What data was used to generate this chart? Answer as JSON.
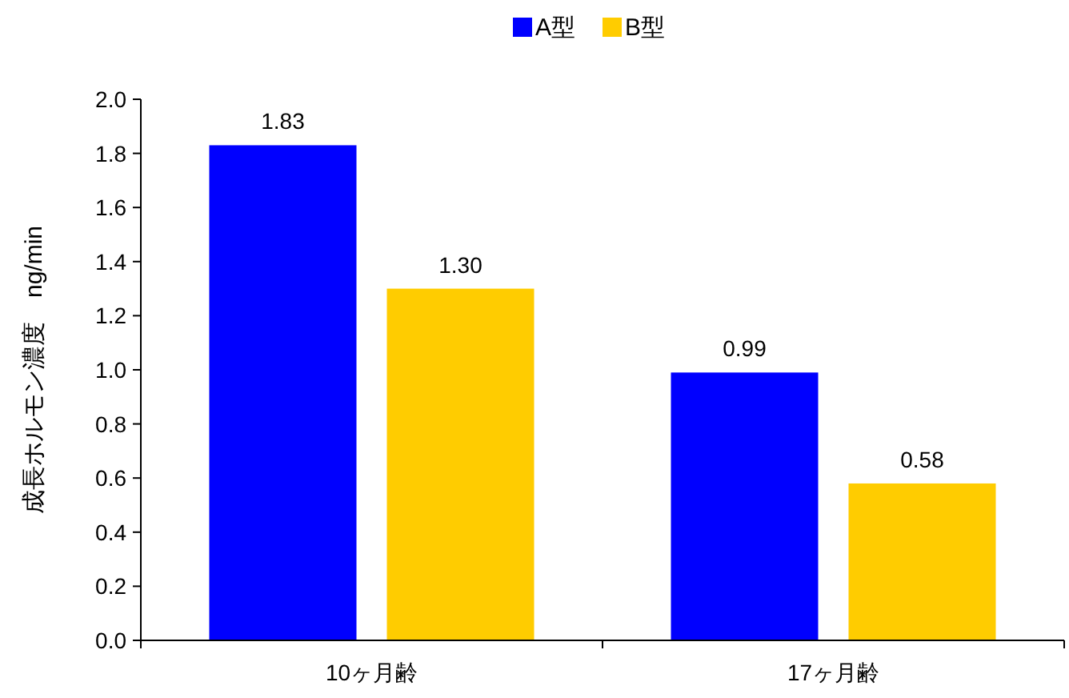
{
  "chart_data": {
    "type": "bar",
    "ylabel": "成長ホルモン濃度　ng/min",
    "categories": [
      "10ヶ月齢",
      "17ヶ月齢"
    ],
    "series": [
      {
        "name": "A型",
        "color": "#0000ff",
        "values": [
          1.83,
          0.99
        ],
        "value_labels": [
          "1.83",
          "0.99"
        ]
      },
      {
        "name": "B型",
        "color": "#ffcc00",
        "values": [
          1.3,
          0.58
        ],
        "value_labels": [
          "1.30",
          "0.58"
        ]
      }
    ],
    "ylim": [
      0,
      2
    ],
    "yticks": [
      {
        "value": 0,
        "label": "0.0"
      },
      {
        "value": 0.2,
        "label": "0.2"
      },
      {
        "value": 0.4,
        "label": "0.4"
      },
      {
        "value": 0.6,
        "label": "0.6"
      },
      {
        "value": 0.8,
        "label": "0.8"
      },
      {
        "value": 1,
        "label": "1.0"
      },
      {
        "value": 1.2,
        "label": "1.2"
      },
      {
        "value": 1.4,
        "label": "1.4"
      },
      {
        "value": 1.6,
        "label": "1.6"
      },
      {
        "value": 1.8,
        "label": "1.8"
      },
      {
        "value": 2,
        "label": "2.0"
      }
    ],
    "grid": false,
    "legend": "top"
  }
}
